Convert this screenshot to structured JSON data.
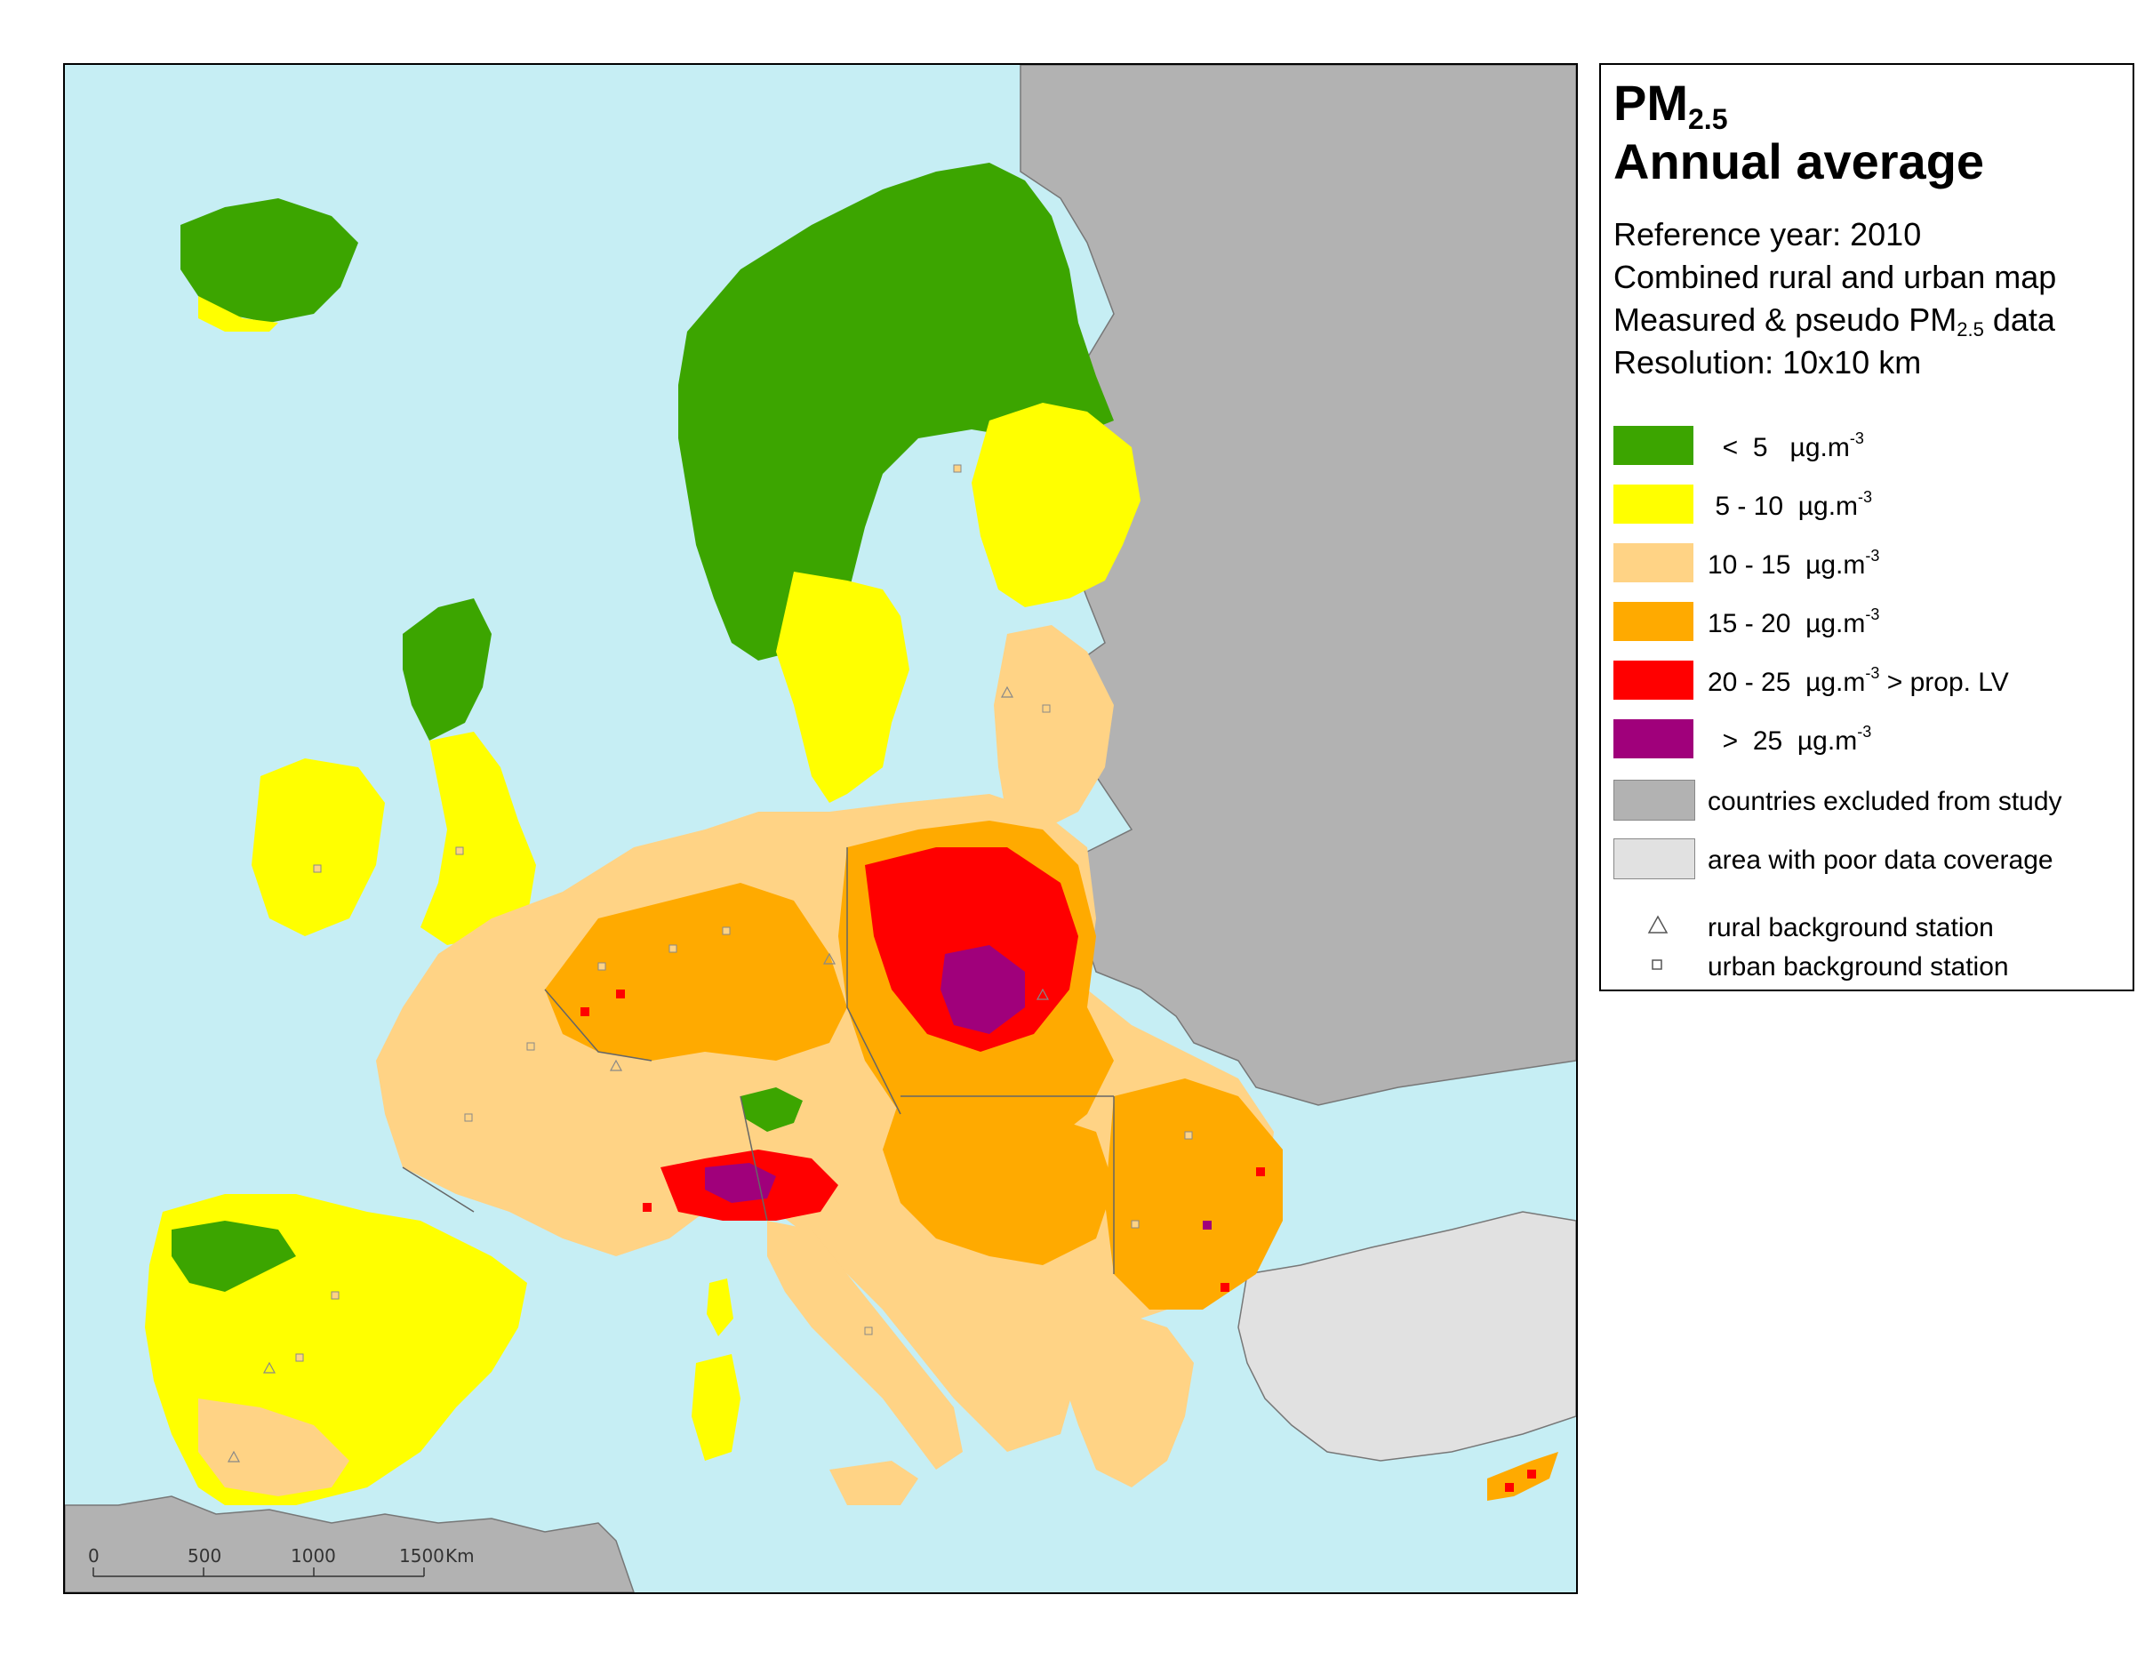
{
  "legend": {
    "title_main": "PM",
    "title_sub": "2.5",
    "title_line2": "Annual average",
    "info": {
      "reference_year": "Reference year: 2010",
      "map_type": "Combined rural and urban map",
      "data_prefix": "Measured & pseudo PM",
      "data_sub": "2.5",
      "data_suffix": " data",
      "resolution": "Resolution: 10x10 km"
    },
    "classes": [
      {
        "label": "  <  5   µg.m",
        "sup": "-3",
        "suffix": "",
        "color": "#3ca500"
      },
      {
        "label": " 5 - 10  µg.m",
        "sup": "-3",
        "suffix": "",
        "color": "#ffff00"
      },
      {
        "label": "10 - 15  µg.m",
        "sup": "-3",
        "suffix": "",
        "color": "#ffd385"
      },
      {
        "label": "15 - 20  µg.m",
        "sup": "-3",
        "suffix": "",
        "color": "#ffaa00"
      },
      {
        "label": "20 - 25  µg.m",
        "sup": "-3",
        "suffix": " > prop. LV",
        "color": "#ff0000"
      },
      {
        "label": "  >  25  µg.m",
        "sup": "-3",
        "suffix": "",
        "color": "#a0007b"
      }
    ],
    "areas": [
      {
        "label": "countries excluded from study",
        "color": "#b2b2b2"
      },
      {
        "label": "area with poor data coverage",
        "color": "#e1e1e1"
      }
    ],
    "stations": [
      {
        "label": "rural background station",
        "icon": "triangle-outline-icon"
      },
      {
        "label": "urban background station",
        "icon": "square-outline-icon"
      }
    ]
  },
  "scalebar": {
    "ticks": [
      "0",
      "500",
      "1000",
      "1500"
    ],
    "unit": "Km"
  },
  "colors": {
    "sea": "#c6eef4",
    "excluded": "#b2b2b2",
    "poor_coverage": "#e1e1e1",
    "border": "#666666"
  }
}
